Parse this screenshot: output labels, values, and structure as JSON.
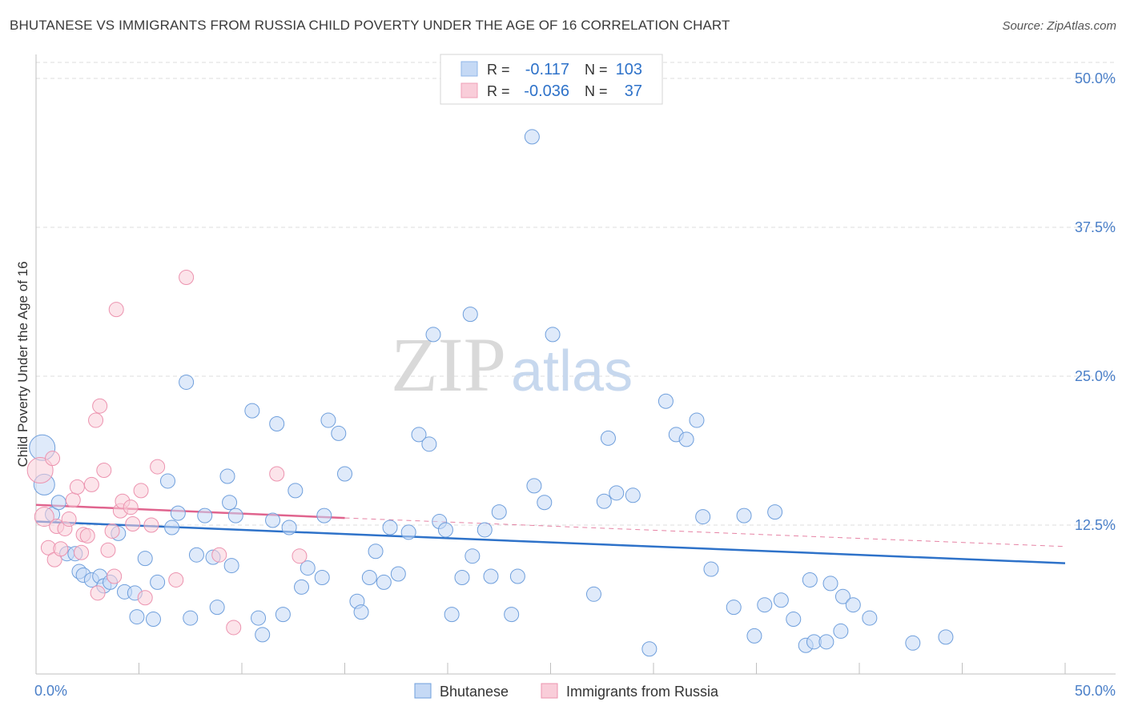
{
  "chart_data": {
    "type": "scatter",
    "title": "BHUTANESE VS IMMIGRANTS FROM RUSSIA CHILD POVERTY UNDER THE AGE OF 16 CORRELATION CHART",
    "source": "Source: ZipAtlas.com",
    "ylabel": "Child Poverty Under the Age of 16",
    "xlabel": "",
    "xlim": [
      0,
      50
    ],
    "ylim": [
      0,
      50
    ],
    "y_ticks": [
      {
        "value": 12.5,
        "label": "12.5%"
      },
      {
        "value": 25.0,
        "label": "25.0%"
      },
      {
        "value": 37.5,
        "label": "37.5%"
      },
      {
        "value": 50.0,
        "label": "50.0%"
      }
    ],
    "x_tick_labels": {
      "left": "0.0%",
      "right": "50.0%"
    },
    "grid": true,
    "watermark": {
      "zip": "ZIP",
      "atlas": "atlas"
    },
    "legend_stats": [
      {
        "r_label": "R =",
        "r_value": "-0.117",
        "n_label": "N =",
        "n_value": "103",
        "color": "#8fb6e8",
        "fill": "#c5d9f5"
      },
      {
        "r_label": "R =",
        "r_value": "-0.036",
        "n_label": "N =",
        "n_value": "37",
        "color": "#f0a0b8",
        "fill": "#f9cdd9"
      }
    ],
    "series": [
      {
        "name": "Bhutanese",
        "color": "#6f9fdc",
        "fill": "#c5d9f5",
        "trend": {
          "x": [
            0,
            50
          ],
          "y": [
            12.8,
            9.3
          ],
          "color": "#2e72c9"
        },
        "points": [
          [
            0.3,
            19.0,
            16
          ],
          [
            0.4,
            15.9,
            13
          ],
          [
            0.8,
            13.4,
            9
          ],
          [
            1.1,
            14.4,
            9
          ],
          [
            1.5,
            10.1,
            9
          ],
          [
            1.9,
            10.1,
            9
          ],
          [
            2.1,
            8.6,
            9
          ],
          [
            2.3,
            8.3,
            9
          ],
          [
            2.7,
            7.9,
            9
          ],
          [
            3.1,
            8.2,
            9
          ],
          [
            3.3,
            7.4,
            9
          ],
          [
            3.6,
            7.7,
            9
          ],
          [
            4.0,
            11.8,
            9
          ],
          [
            4.3,
            6.9,
            9
          ],
          [
            4.8,
            6.8,
            9
          ],
          [
            4.9,
            4.8,
            9
          ],
          [
            5.3,
            9.7,
            9
          ],
          [
            5.7,
            4.6,
            9
          ],
          [
            5.9,
            7.7,
            9
          ],
          [
            6.4,
            16.2,
            9
          ],
          [
            6.6,
            12.3,
            9
          ],
          [
            6.9,
            13.5,
            9
          ],
          [
            7.3,
            24.5,
            9
          ],
          [
            7.5,
            4.7,
            9
          ],
          [
            7.8,
            10.0,
            9
          ],
          [
            8.2,
            13.3,
            9
          ],
          [
            8.6,
            9.8,
            9
          ],
          [
            8.8,
            5.6,
            9
          ],
          [
            9.3,
            16.6,
            9
          ],
          [
            9.4,
            14.4,
            9
          ],
          [
            9.5,
            9.1,
            9
          ],
          [
            9.7,
            13.3,
            9
          ],
          [
            10.5,
            22.1,
            9
          ],
          [
            10.8,
            4.7,
            9
          ],
          [
            11.0,
            3.3,
            9
          ],
          [
            11.5,
            12.9,
            9
          ],
          [
            11.7,
            21.0,
            9
          ],
          [
            12.0,
            5.0,
            9
          ],
          [
            12.3,
            12.3,
            9
          ],
          [
            12.6,
            15.4,
            9
          ],
          [
            12.9,
            7.3,
            9
          ],
          [
            13.2,
            8.9,
            9
          ],
          [
            13.9,
            8.1,
            9
          ],
          [
            14.0,
            13.3,
            9
          ],
          [
            14.2,
            21.3,
            9
          ],
          [
            14.7,
            20.2,
            9
          ],
          [
            15.0,
            16.8,
            9
          ],
          [
            15.6,
            6.1,
            9
          ],
          [
            15.8,
            5.2,
            9
          ],
          [
            16.2,
            8.1,
            9
          ],
          [
            16.5,
            10.3,
            9
          ],
          [
            16.9,
            7.7,
            9
          ],
          [
            17.2,
            12.3,
            9
          ],
          [
            17.6,
            8.4,
            9
          ],
          [
            18.1,
            11.9,
            9
          ],
          [
            18.6,
            20.1,
            9
          ],
          [
            19.1,
            19.3,
            9
          ],
          [
            19.3,
            28.5,
            9
          ],
          [
            19.6,
            12.8,
            9
          ],
          [
            19.9,
            12.1,
            9
          ],
          [
            20.2,
            5.0,
            9
          ],
          [
            20.7,
            8.1,
            9
          ],
          [
            21.1,
            30.2,
            9
          ],
          [
            21.2,
            9.9,
            9
          ],
          [
            21.8,
            12.1,
            9
          ],
          [
            22.1,
            8.2,
            9
          ],
          [
            22.5,
            13.6,
            9
          ],
          [
            23.1,
            5.0,
            9
          ],
          [
            23.4,
            8.2,
            9
          ],
          [
            24.1,
            45.1,
            9
          ],
          [
            24.2,
            15.8,
            9
          ],
          [
            24.7,
            14.4,
            9
          ],
          [
            25.1,
            28.5,
            9
          ],
          [
            27.1,
            6.7,
            9
          ],
          [
            27.6,
            14.5,
            9
          ],
          [
            28.2,
            15.2,
            9
          ],
          [
            27.8,
            19.8,
            9
          ],
          [
            29.0,
            15.0,
            9
          ],
          [
            29.8,
            2.1,
            9
          ],
          [
            30.6,
            22.9,
            9
          ],
          [
            31.1,
            20.1,
            9
          ],
          [
            31.6,
            19.7,
            9
          ],
          [
            32.1,
            21.3,
            9
          ],
          [
            32.4,
            13.2,
            9
          ],
          [
            32.8,
            8.8,
            9
          ],
          [
            33.9,
            5.6,
            9
          ],
          [
            34.4,
            13.3,
            9
          ],
          [
            34.9,
            3.2,
            9
          ],
          [
            35.4,
            5.8,
            9
          ],
          [
            35.9,
            13.6,
            9
          ],
          [
            36.2,
            6.2,
            9
          ],
          [
            36.8,
            4.6,
            9
          ],
          [
            37.4,
            2.4,
            9
          ],
          [
            37.6,
            7.9,
            9
          ],
          [
            37.8,
            2.7,
            9
          ],
          [
            38.4,
            2.7,
            9
          ],
          [
            38.6,
            7.6,
            9
          ],
          [
            39.1,
            3.6,
            9
          ],
          [
            39.2,
            6.5,
            9
          ],
          [
            39.7,
            5.8,
            9
          ],
          [
            40.5,
            4.7,
            9
          ],
          [
            42.6,
            2.6,
            9
          ],
          [
            44.2,
            3.1,
            9
          ]
        ]
      },
      {
        "name": "Immigrants from Russia",
        "color": "#ec93af",
        "fill": "#f9cdd9",
        "trend": {
          "x": [
            0,
            15
          ],
          "y": [
            14.2,
            13.1
          ],
          "dash_to": [
            50,
            10.7
          ],
          "color": "#e0648e"
        },
        "points": [
          [
            0.2,
            17.1,
            16
          ],
          [
            0.4,
            13.2,
            12
          ],
          [
            0.6,
            10.6,
            9
          ],
          [
            0.8,
            18.1,
            9
          ],
          [
            0.9,
            9.6,
            9
          ],
          [
            1.0,
            12.4,
            9
          ],
          [
            1.2,
            10.5,
            9
          ],
          [
            1.4,
            12.2,
            9
          ],
          [
            1.6,
            13.0,
            9
          ],
          [
            1.8,
            14.6,
            9
          ],
          [
            2.0,
            15.7,
            9
          ],
          [
            2.2,
            10.2,
            9
          ],
          [
            2.3,
            11.7,
            9
          ],
          [
            2.5,
            11.6,
            9
          ],
          [
            2.7,
            15.9,
            9
          ],
          [
            2.9,
            21.3,
            9
          ],
          [
            3.0,
            6.8,
            9
          ],
          [
            3.1,
            22.5,
            9
          ],
          [
            3.3,
            17.1,
            9
          ],
          [
            3.5,
            10.4,
            9
          ],
          [
            3.7,
            12.0,
            9
          ],
          [
            3.8,
            8.2,
            9
          ],
          [
            3.9,
            30.6,
            9
          ],
          [
            4.1,
            13.7,
            9
          ],
          [
            4.2,
            14.5,
            9
          ],
          [
            4.6,
            14.0,
            9
          ],
          [
            4.7,
            12.6,
            9
          ],
          [
            5.1,
            15.4,
            9
          ],
          [
            5.3,
            6.4,
            9
          ],
          [
            5.6,
            12.5,
            9
          ],
          [
            5.9,
            17.4,
            9
          ],
          [
            6.8,
            7.9,
            9
          ],
          [
            7.3,
            33.3,
            9
          ],
          [
            8.9,
            10.0,
            9
          ],
          [
            9.6,
            3.9,
            9
          ],
          [
            11.7,
            16.8,
            9
          ],
          [
            12.8,
            9.9,
            9
          ]
        ]
      }
    ]
  }
}
